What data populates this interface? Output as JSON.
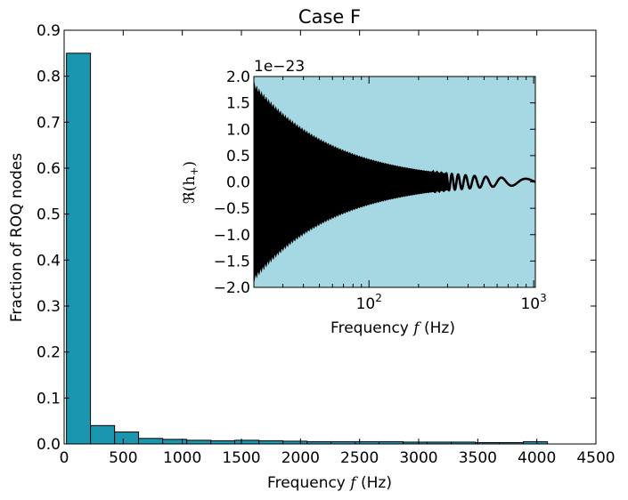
{
  "chart_data": [
    {
      "type": "bar",
      "title": "Case F",
      "xlabel": "Frequency f (Hz)",
      "ylabel": "Fraction of ROQ nodes",
      "xlim": [
        0,
        4500
      ],
      "ylim": [
        0,
        0.9
      ],
      "xticks": [
        0,
        500,
        1000,
        1500,
        2000,
        2500,
        3000,
        3500,
        4000,
        4500
      ],
      "yticks": [
        0.0,
        0.1,
        0.2,
        0.3,
        0.4,
        0.5,
        0.6,
        0.7,
        0.8,
        0.9
      ],
      "xtick_labels": [
        "0",
        "500",
        "1000",
        "1500",
        "2000",
        "2500",
        "3000",
        "3500",
        "4000",
        "4500"
      ],
      "ytick_labels": [
        "0.0",
        "0.1",
        "0.2",
        "0.3",
        "0.4",
        "0.5",
        "0.6",
        "0.7",
        "0.8",
        "0.9"
      ],
      "bar_color": "#1a96b0",
      "bins": [
        {
          "start": 20,
          "end": 223,
          "value": 0.85
        },
        {
          "start": 223,
          "end": 427,
          "value": 0.04
        },
        {
          "start": 427,
          "end": 630,
          "value": 0.026
        },
        {
          "start": 630,
          "end": 834,
          "value": 0.012
        },
        {
          "start": 834,
          "end": 1037,
          "value": 0.01
        },
        {
          "start": 1037,
          "end": 1241,
          "value": 0.008
        },
        {
          "start": 1241,
          "end": 1444,
          "value": 0.007
        },
        {
          "start": 1444,
          "end": 1648,
          "value": 0.008
        },
        {
          "start": 1648,
          "end": 1851,
          "value": 0.007
        },
        {
          "start": 1851,
          "end": 2055,
          "value": 0.006
        },
        {
          "start": 2055,
          "end": 2258,
          "value": 0.005
        },
        {
          "start": 2258,
          "end": 2462,
          "value": 0.005
        },
        {
          "start": 2462,
          "end": 2665,
          "value": 0.005
        },
        {
          "start": 2665,
          "end": 2869,
          "value": 0.005
        },
        {
          "start": 2869,
          "end": 3072,
          "value": 0.004
        },
        {
          "start": 3072,
          "end": 3276,
          "value": 0.004
        },
        {
          "start": 3276,
          "end": 3479,
          "value": 0.004
        },
        {
          "start": 3479,
          "end": 3683,
          "value": 0.003
        },
        {
          "start": 3683,
          "end": 3886,
          "value": 0.003
        },
        {
          "start": 3886,
          "end": 4090,
          "value": 0.005
        }
      ]
    },
    {
      "type": "line",
      "xlabel": "Frequency f (Hz)",
      "ylabel": "ℜ(h+)",
      "offset_label": "1e−23",
      "xscale": "log",
      "xlim": [
        20,
        1024
      ],
      "ylim": [
        -2.0,
        2.0
      ],
      "yticks": [
        -2.0,
        -1.5,
        -1.0,
        -0.5,
        0.0,
        0.5,
        1.0,
        1.5,
        2.0
      ],
      "ytick_labels": [
        "−2.0",
        "−1.5",
        "−1.0",
        "−0.5",
        "0.0",
        "0.5",
        "1.0",
        "1.5",
        "2.0"
      ],
      "xticks": [
        100,
        1000
      ],
      "xtick_labels": [
        {
          "base": "10",
          "exp": "2"
        },
        {
          "base": "10",
          "exp": "3"
        }
      ],
      "background_color": "#a6d8e3",
      "line_color": "#000000",
      "envelope": {
        "f_ref": 20,
        "amplitude_at_ref": 1.85,
        "power": -0.9
      },
      "chirp": {
        "f_low": 20,
        "oscillation_scale": 21000
      }
    }
  ]
}
